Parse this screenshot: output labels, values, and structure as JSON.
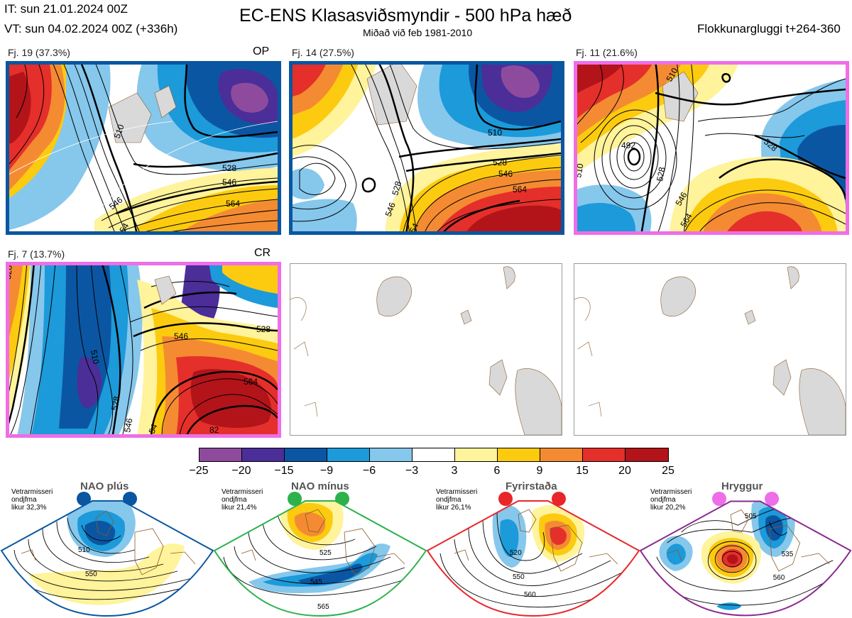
{
  "header": {
    "it_line": "IT: sun 21.01.2024 00Z",
    "vt_line": "VT: sun 04.02.2024 00Z  (+336h)",
    "title": "EC-ENS Klasasviðsmyndir - 500 hPa hæð",
    "subtitle": "Miðað við feb 1981-2010",
    "window": "Flokkunargluggi t+264-360"
  },
  "panels": [
    {
      "label": "Fj. 19 (37.3%)",
      "tag": "OP",
      "border_color": "#0a56a0",
      "contours": [
        "510",
        "528",
        "546",
        "546",
        "564",
        "54"
      ]
    },
    {
      "label": "Fj. 14 (27.5%)",
      "tag": "",
      "border_color": "#0a56a0",
      "contours": [
        "510",
        "528",
        "546",
        "564",
        "528",
        "546",
        "54"
      ]
    },
    {
      "label": "Fj. 11 (21.6%)",
      "tag": "",
      "border_color": "#ee6ee8",
      "contours": [
        "510",
        "528",
        "492",
        "510",
        "528",
        "546",
        "564"
      ]
    },
    {
      "label": "Fj. 7 (13.7%)",
      "tag": "CR",
      "border_color": "#ee6ee8",
      "contours": [
        "528",
        "510",
        "546",
        "528",
        "564",
        "528",
        "546",
        "54",
        "82"
      ]
    }
  ],
  "colorbar": {
    "colors": [
      "#8e4b9d",
      "#4b2e98",
      "#0b56a2",
      "#1c9ad9",
      "#86c7ec",
      "#ffffff",
      "#fff39b",
      "#fccb0f",
      "#f48b32",
      "#e52f2a",
      "#b2141a"
    ],
    "labels": [
      "−25",
      "−20",
      "−15",
      "−9",
      "−6",
      "−3",
      "3",
      "6",
      "9",
      "15",
      "20",
      "25"
    ]
  },
  "regimes": [
    {
      "name": "NAO plús",
      "info": "Vetrarmisseri\nondjfma\nlikur 32,3%",
      "color": "#0a56a0",
      "contours": [
        "510",
        "550"
      ]
    },
    {
      "name": "NAO mínus",
      "info": "Vetrarmisseri\nondjfma\nlikur 21,4%",
      "color": "#2bb24c",
      "contours": [
        "525",
        "545",
        "565"
      ]
    },
    {
      "name": "Fyrirstaða",
      "info": "Vetrarmisseri\nondjfma\nlikur 26,1%",
      "color": "#e8262a",
      "contours": [
        "520",
        "550",
        "560"
      ]
    },
    {
      "name": "Hryggur",
      "info": "Vetrarmisseri\nondjfma\nlikur 20,2%",
      "color": "#ee6ee8",
      "contours": [
        "505",
        "535",
        "560"
      ]
    }
  ]
}
